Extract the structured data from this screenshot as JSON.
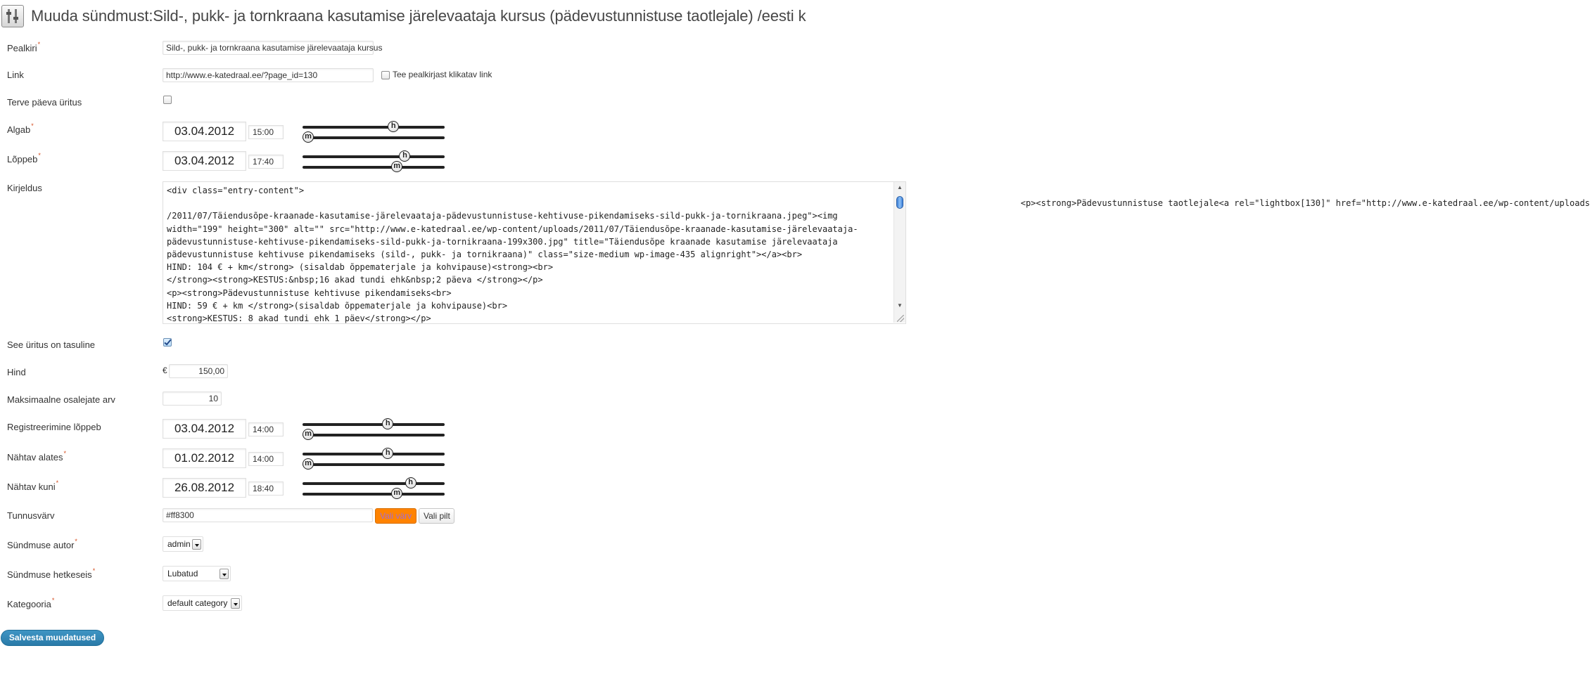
{
  "title": "Muuda sündmust:Sild-, pukk- ja tornkraana kasutamise järelevaataja kursus (pädevustunnistuse taotlejale) /eesti k",
  "fields": {
    "pealkiri": {
      "label": "Pealkiri",
      "value": "Sild-, pukk- ja tornkraana kasutamise järelevaataja kursus"
    },
    "link": {
      "label": "Link",
      "value": "http://www.e-katedraal.ee/?page_id=130",
      "checkbox_label": "Tee pealkirjast klikatav link"
    },
    "terve_paev": {
      "label": "Terve päeva üritus"
    },
    "algab": {
      "label": "Algab",
      "date": "03.04.2012",
      "time": "15:00",
      "hour": 15,
      "minute": 0
    },
    "loppeb": {
      "label": "Lõppeb",
      "date": "03.04.2012",
      "time": "17:40",
      "hour": 17,
      "minute": 40
    },
    "kirjeldus": {
      "label": "Kirjeldus",
      "text": "<div class=\"entry-content\">\n\t\t\t\t\t\t\t\t\t\t\t\t\t\t\t\t\t\t\t\t\t<p><strong>Pädevustunnistuse taotlejale<a rel=\"lightbox[130]\" href=\"http://www.e-katedraal.ee/wp-content/uploads\n/2011/07/Täiendusõpe-kraanade-kasutamise-järelevaataja-pädevustunnistuse-kehtivuse-pikendamiseks-sild-pukk-ja-tornikraana.jpeg\"><img\nwidth=\"199\" height=\"300\" alt=\"\" src=\"http://www.e-katedraal.ee/wp-content/uploads/2011/07/Täiendusõpe-kraanade-kasutamise-järelevaataja-\npädevustunnistuse-kehtivuse-pikendamiseks-sild-pukk-ja-tornikraana-199x300.jpg\" title=\"Täiendusõpe kraanade kasutamise järelevaataja\npädevustunnistuse kehtivuse pikendamiseks (sild-, pukk- ja tornikraana)\" class=\"size-medium wp-image-435 alignright\"></a><br>\nHIND: 104 € + km</strong> (sisaldab õppematerjale ja kohvipause)<strong><br>\n</strong><strong>KESTUS:&nbsp;16 akad tundi ehk&nbsp;2 päeva </strong></p>\n<p><strong>Pädevustunnistuse kehtivuse pikendamiseks<br>\nHIND: 59 € + km </strong>(sisaldab õppematerjale ja kohvipause)<br>\n<strong>KESTUS: 8 akad tundi ehk 1 päev</strong></p>"
    },
    "tasuline": {
      "label": "See üritus on tasuline",
      "checked": true
    },
    "hind": {
      "label": "Hind",
      "currency": "€",
      "value": "150,00"
    },
    "max_osalejad": {
      "label": "Maksimaalne osalejate arv",
      "value": "10"
    },
    "registreerimine": {
      "label": "Registreerimine lõppeb",
      "date": "03.04.2012",
      "time": "14:00",
      "hour": 14,
      "minute": 0
    },
    "nahtav_alates": {
      "label": "Nähtav alates",
      "date": "01.02.2012",
      "time": "14:00",
      "hour": 14,
      "minute": 0
    },
    "nahtav_kuni": {
      "label": "Nähtav kuni",
      "date": "26.08.2012",
      "time": "18:40",
      "hour": 18,
      "minute": 40
    },
    "tunnusvarv": {
      "label": "Tunnusvärv",
      "value": "#ff8300",
      "pick_color_label": "Vali värv",
      "pick_image_label": "Vali pilt"
    },
    "autor": {
      "label": "Sündmuse autor",
      "value": "admin"
    },
    "hetkeseis": {
      "label": "Sündmuse hetkeseis",
      "value": "Lubatud"
    },
    "kategooria": {
      "label": "Kategooria",
      "value": "default category"
    }
  },
  "slider_letters": {
    "hour": "h",
    "minute": "m"
  },
  "required_mark": "*",
  "save_label": "Salvesta muudatused",
  "colors": {
    "accent": "#ff8300",
    "primary_button": "#2a7aa8"
  }
}
